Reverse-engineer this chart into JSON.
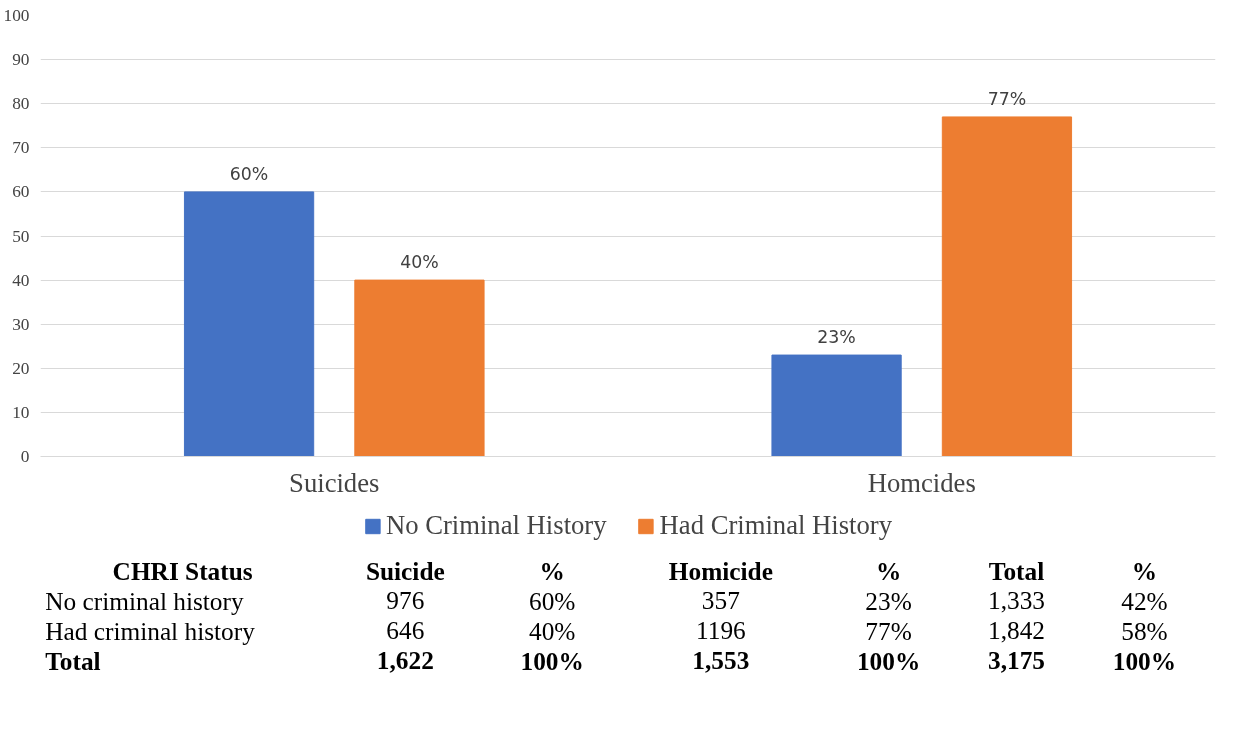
{
  "chart_data": {
    "type": "bar",
    "categories": [
      "Suicides",
      "Homcides"
    ],
    "series": [
      {
        "name": "No Criminal History",
        "color": "#4472c4",
        "values": [
          60,
          23
        ],
        "value_labels": [
          "60%",
          "23%"
        ]
      },
      {
        "name": "Had Criminal History",
        "color": "#ed7d31",
        "values": [
          40,
          77
        ],
        "value_labels": [
          "40%",
          "77%"
        ]
      }
    ],
    "ylim": [
      0,
      100
    ],
    "yticks": [
      0,
      10,
      20,
      30,
      40,
      50,
      60,
      70,
      80,
      90,
      100
    ],
    "grid": "y",
    "legend": "bottom",
    "annotations": [
      "CHRI Status",
      "Suicide",
      "%",
      "Homicide",
      "%",
      "Total",
      "%",
      "No criminal history",
      "976",
      "60%",
      "357",
      "23%",
      "1,333",
      "42%",
      "Had criminal history",
      "646",
      "40%",
      "1196",
      "77%",
      "1,842",
      "58%",
      "Total",
      "1,622",
      "100%",
      "1,553",
      "100%",
      "3,175",
      "100%"
    ]
  }
}
